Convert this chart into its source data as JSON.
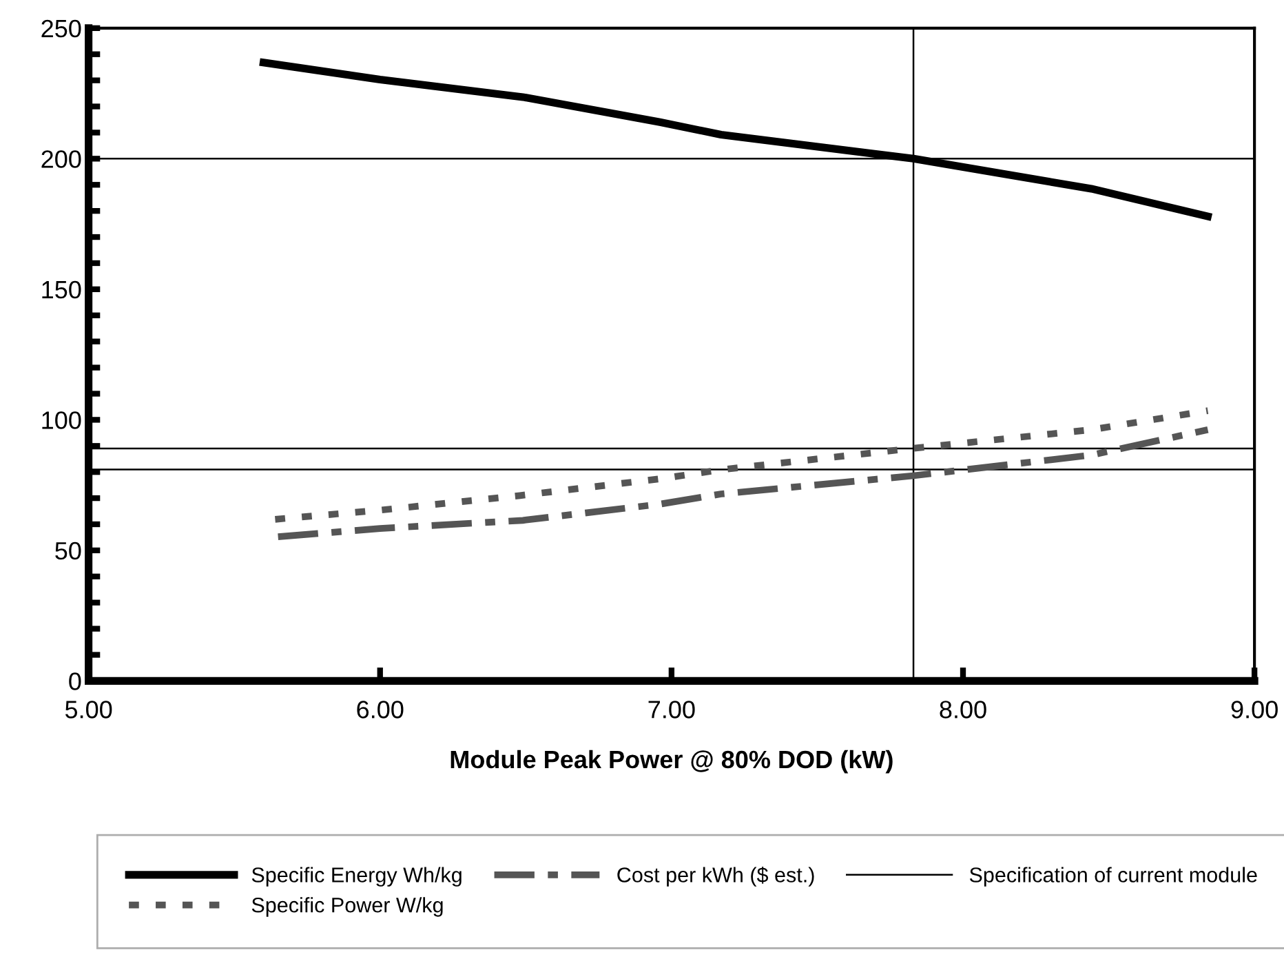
{
  "chart_data": {
    "type": "line",
    "xlabel": "Module Peak Power @ 80% DOD (kW)",
    "xlim": [
      5,
      9
    ],
    "xticks": [
      {
        "value": 5,
        "label": "5.00"
      },
      {
        "value": 6,
        "label": "6.00"
      },
      {
        "value": 7,
        "label": "7.00"
      },
      {
        "value": 8,
        "label": "8.00"
      },
      {
        "value": 9,
        "label": "9.00"
      }
    ],
    "ylim": [
      0,
      250
    ],
    "yticks": [
      0,
      {
        "value": 10,
        "label": null
      },
      {
        "value": 20,
        "label": null
      },
      {
        "value": 30,
        "label": null
      },
      {
        "value": 40,
        "label": null
      },
      50,
      {
        "value": 60,
        "label": null
      },
      {
        "value": 70,
        "label": null
      },
      {
        "value": 80,
        "label": null
      },
      {
        "value": 90,
        "label": null
      },
      100,
      {
        "value": 110,
        "label": null
      },
      {
        "value": 120,
        "label": null
      },
      {
        "value": 130,
        "label": null
      },
      {
        "value": 140,
        "label": null
      },
      150,
      {
        "value": 160,
        "label": null
      },
      {
        "value": 170,
        "label": null
      },
      {
        "value": 180,
        "label": null
      },
      {
        "value": 190,
        "label": null
      },
      200,
      {
        "value": 210,
        "label": null
      },
      {
        "value": 220,
        "label": null
      },
      {
        "value": 230,
        "label": null
      },
      {
        "value": 240,
        "label": null
      },
      250
    ],
    "grid": false,
    "legend": "bottom",
    "marker": "none",
    "series": [
      {
        "name": "Specific Energy Wh/kg",
        "color": "#000000",
        "line_style": "solid",
        "x": [
          5.6,
          6.0,
          6.49,
          6.96,
          7.17,
          7.83,
          8.44,
          8.84
        ],
        "values": [
          236.8,
          230.3,
          223.6,
          214,
          209.2,
          200,
          188.5,
          177.9
        ]
      },
      {
        "name": "Specific Power W/kg",
        "color": "#555555",
        "line_style": "dotted",
        "x": [
          5.64,
          6.0,
          6.48,
          6.96,
          7.17,
          7.83,
          8.44,
          8.84
        ],
        "values": [
          61.9,
          65.4,
          71,
          77.4,
          80.9,
          89.1,
          96.2,
          103.5
        ]
      },
      {
        "name": "Cost per kWh ($ est.)",
        "color": "#555555",
        "line_style": "dashed",
        "x": [
          5.65,
          6.0,
          6.49,
          6.96,
          7.17,
          7.83,
          8.44,
          8.84
        ],
        "values": [
          55.2,
          58.4,
          61.5,
          67.7,
          71.6,
          78.6,
          86.5,
          96.2
        ]
      }
    ],
    "ref_lines": [
      {
        "axis": "y",
        "value": 200,
        "label": "Specification of current module",
        "color": "#000000"
      },
      {
        "axis": "y",
        "value": 89,
        "color": "#000000"
      },
      {
        "axis": "y",
        "value": 81,
        "color": "#000000"
      },
      {
        "axis": "x",
        "value": 7.83,
        "color": "#000000"
      }
    ]
  }
}
